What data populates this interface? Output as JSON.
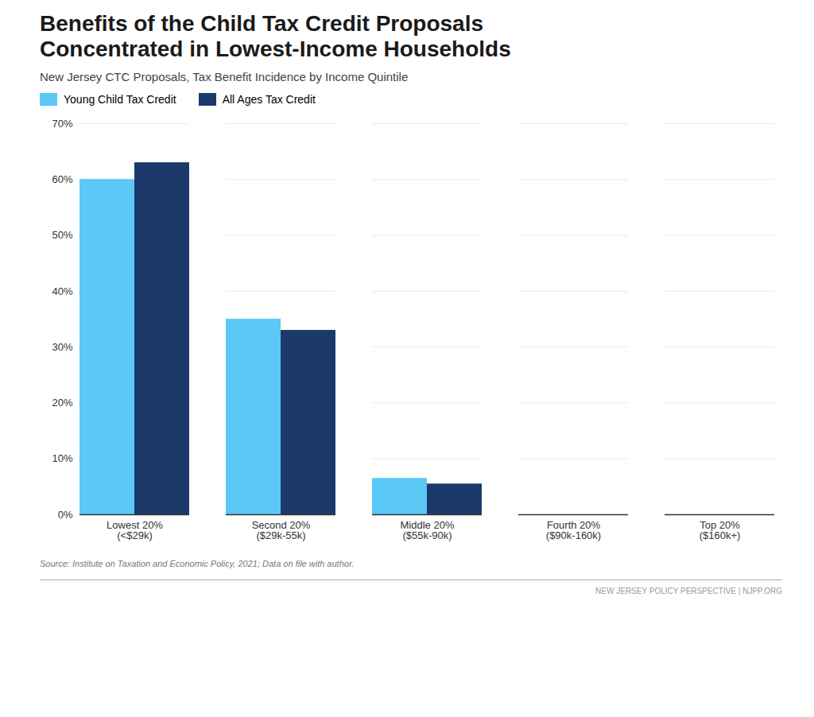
{
  "chart_data": {
    "type": "bar",
    "title": "Benefits of the Child Tax Credit Proposals\nConcentrated in Lowest-Income Households",
    "subtitle": "New Jersey CTC Proposals, Tax Benefit Incidence by Income Quintile",
    "categories": [
      "Lowest 20%\n(<$29k)",
      "Second 20%\n($29k-55k)",
      "Middle 20%\n($55k-90k)",
      "Fourth 20%\n($90k-160k)",
      "Top 20%\n($160k+)"
    ],
    "series": [
      {
        "name": "Young Child Tax Credit",
        "color": "#5BC8F5",
        "values": [
          0.6,
          0.35,
          0.065,
          0.0,
          0.0
        ]
      },
      {
        "name": "All Ages Tax Credit",
        "color": "#1B3A6B",
        "values": [
          0.63,
          0.33,
          0.055,
          0.0,
          0.0
        ]
      }
    ],
    "ylim": [
      0,
      0.7
    ],
    "yticks": [
      {
        "value": 0.0,
        "label": "0%"
      },
      {
        "value": 0.1,
        "label": "10%"
      },
      {
        "value": 0.2,
        "label": "20%"
      },
      {
        "value": 0.3,
        "label": "30%"
      },
      {
        "value": 0.4,
        "label": "40%"
      },
      {
        "value": 0.5,
        "label": "50%"
      },
      {
        "value": 0.6,
        "label": "60%"
      },
      {
        "value": 0.7,
        "label": "70%"
      }
    ],
    "grid": true,
    "legend": "top-left",
    "source": "Source: Institute on Taxation and Economic Policy, 2021; Data on file with author.",
    "footer": "NEW JERSEY POLICY PERSPECTIVE  |  NJPP.ORG"
  }
}
